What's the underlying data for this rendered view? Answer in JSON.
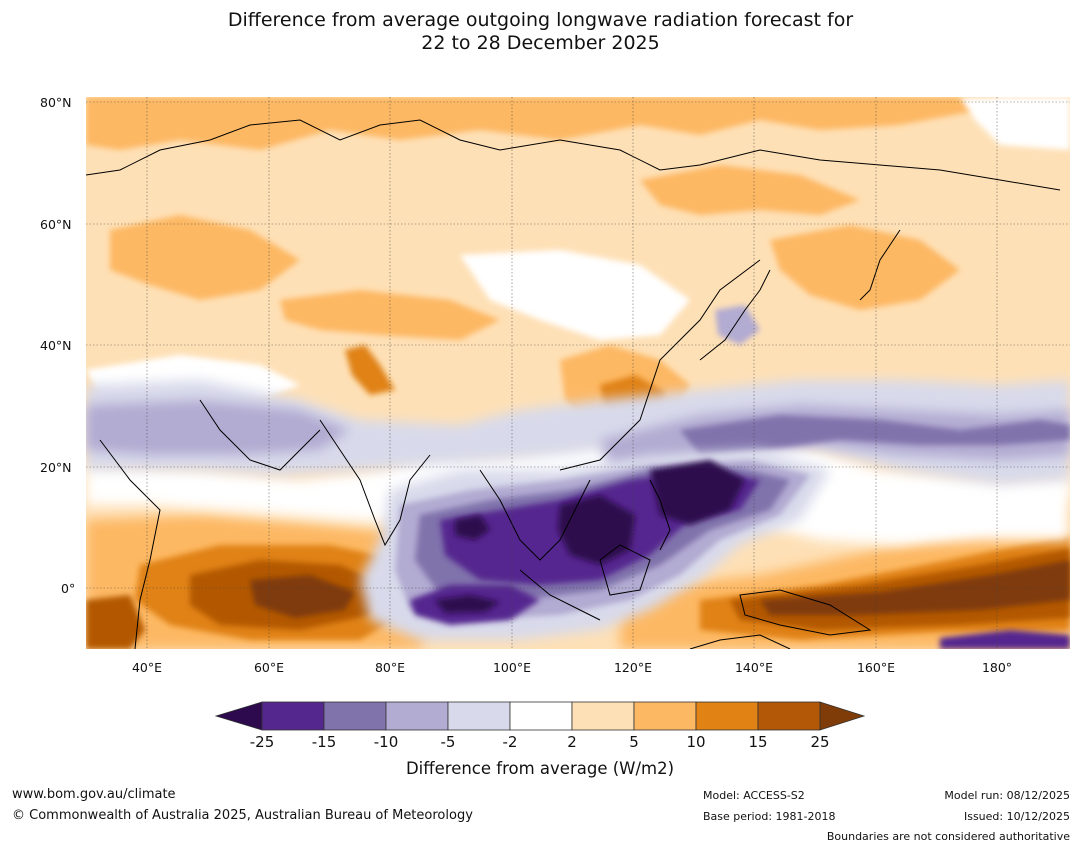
{
  "title": {
    "line1": "Difference from average outgoing longwave radiation forecast for",
    "line2": "22 to 28 December 2025"
  },
  "map": {
    "lat_labels": [
      "80°N",
      "60°N",
      "40°N",
      "20°N",
      "0°"
    ],
    "lon_labels": [
      "40°E",
      "60°E",
      "80°E",
      "100°E",
      "120°E",
      "140°E",
      "160°E",
      "180°"
    ],
    "lat_range": [
      -10,
      80
    ],
    "lon_range": [
      30,
      192
    ],
    "anomaly_regions": [
      {
        "region": "Western Pacific / Philippine Sea",
        "center_lon": 127,
        "center_lat": 12,
        "value_range": "< -25"
      },
      {
        "region": "South China Sea",
        "center_lon": 113,
        "center_lat": 8,
        "value_range": "< -25"
      },
      {
        "region": "Eastern Indian Ocean",
        "center_lon": 90,
        "center_lat": -3,
        "value_range": "< -25"
      },
      {
        "region": "Bay of Bengal south",
        "center_lon": 92,
        "center_lat": 8,
        "value_range": "-25 to -15"
      },
      {
        "region": "Arabian Sea / Middle East band",
        "center_lon": 55,
        "center_lat": 25,
        "value_range": "-10 to -5"
      },
      {
        "region": "Central Pacific zonal band",
        "center_lon": 165,
        "center_lat": 25,
        "value_range": "-15 to -5"
      },
      {
        "region": "Western Indian Ocean",
        "center_lon": 62,
        "center_lat": -2,
        "value_range": "15 to 25"
      },
      {
        "region": "Equatorial West Pacific",
        "center_lon": 175,
        "center_lat": 0,
        "value_range": "> 25"
      },
      {
        "region": "Eastern China",
        "center_lon": 118,
        "center_lat": 33,
        "value_range": "5 to 15"
      },
      {
        "region": "Northern Eurasia",
        "center_lon": 100,
        "center_lat": 60,
        "value_range": "2 to 10"
      },
      {
        "region": "Northeast Asia / Kamchatka",
        "center_lon": 150,
        "center_lat": 52,
        "value_range": "5 to 10"
      }
    ]
  },
  "colorbar": {
    "ticks": [
      "-25",
      "-15",
      "-10",
      "-5",
      "-2",
      "2",
      "5",
      "10",
      "15",
      "25"
    ],
    "colors": [
      "#2d0a4e",
      "#54278f",
      "#8073ac",
      "#b2abd2",
      "#d8daeb",
      "#ffffff",
      "#fee0b6",
      "#fdb863",
      "#e08214",
      "#b35806",
      "#7f3b08"
    ],
    "label": "Difference from average (W/m2)"
  },
  "footer": {
    "website": "www.bom.gov.au/climate",
    "copyright": "© Commonwealth of Australia 2025, Australian Bureau of Meteorology",
    "model": "Model: ACCESS-S2",
    "base_period": "Base period: 1981-2018",
    "model_run": "Model run: 08/12/2025",
    "issued": "Issued: 10/12/2025",
    "disclaimer": "Boundaries are not considered authoritative"
  }
}
